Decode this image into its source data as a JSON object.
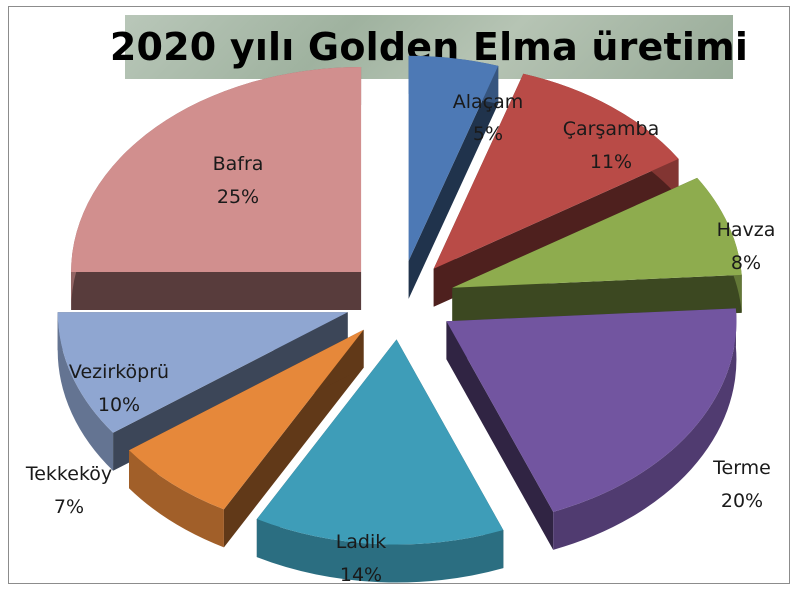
{
  "chart_data": {
    "type": "pie",
    "title": "2020 yılı Golden Elma üretimi",
    "categories": [
      "Alaçam",
      "Çarşamba",
      "Havza",
      "Terme",
      "Ladik",
      "Tekkeköy",
      "Vezirköprü",
      "Bafra"
    ],
    "series": [
      {
        "values": [
          5,
          11,
          8,
          20,
          14,
          7,
          10,
          25
        ],
        "labels": [
          "5%",
          "11%",
          "8%",
          "20%",
          "14%",
          "7%",
          "10%",
          "25%"
        ]
      }
    ],
    "colors": [
      "#4d79b5",
      "#b94b47",
      "#8eac4e",
      "#7255a0",
      "#3e9db8",
      "#e6883a",
      "#8fa6d1",
      "#d18f8e"
    ],
    "style": "exploded-3d",
    "legend": "none"
  }
}
